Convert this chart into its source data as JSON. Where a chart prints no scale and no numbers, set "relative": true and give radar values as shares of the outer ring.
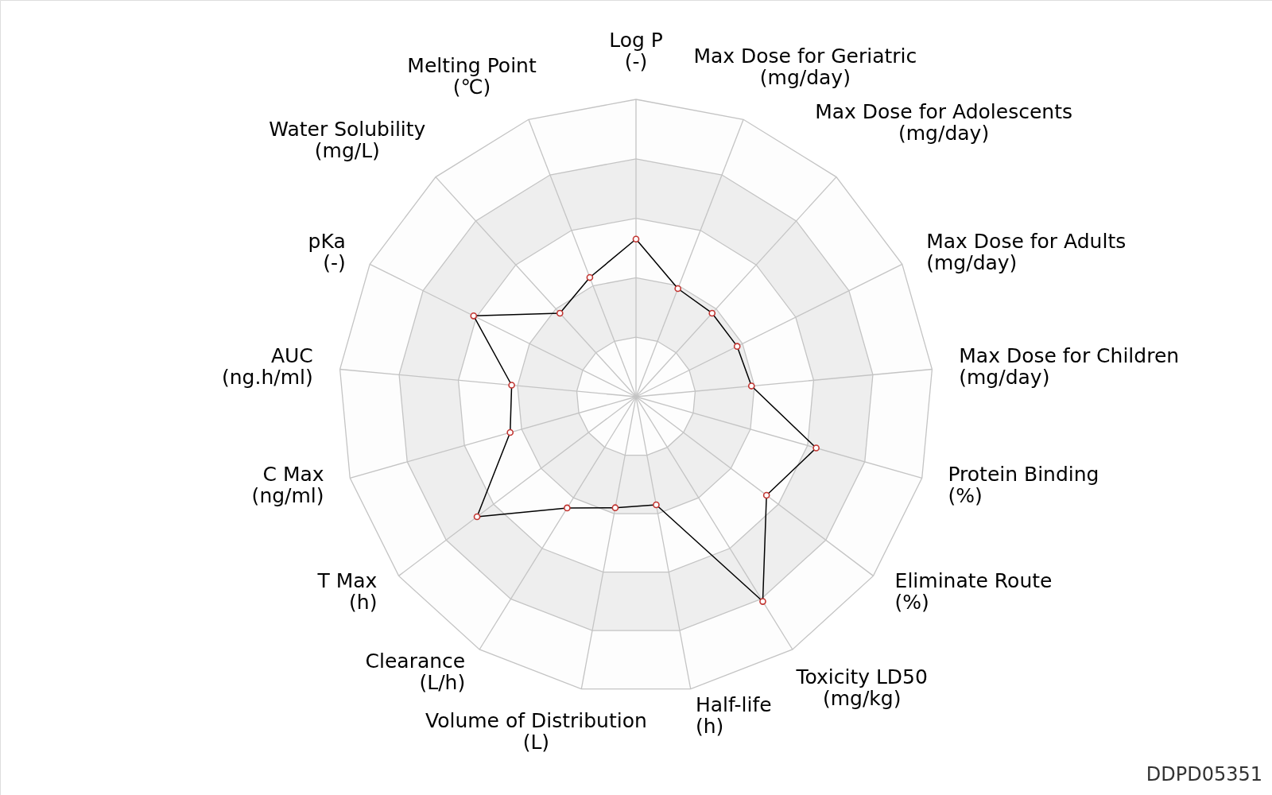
{
  "chart_data": {
    "type": "radar",
    "relative": true,
    "grid": true,
    "marker": "circle",
    "line_style": "solid",
    "categories": [
      "Log P\n(-)",
      "Max Dose for Geriatric\n(mg/day)",
      "Max Dose for Adolescents\n(mg/day)",
      "Max Dose for Adults\n(mg/day)",
      "Max Dose for Children\n(mg/day)",
      "Protein Binding\n(%)",
      "Eliminate Route\n(%)",
      "Toxicity LD50\n(mg/kg)",
      "Half-life\n(h)",
      "Volume of Distribution\n(L)",
      "Clearance\n(L/h)",
      "T Max\n(h)",
      "C Max\n(ng/ml)",
      "AUC\n(ng.h/ml)",
      "pKa\n(-)",
      "Water Solubility\n(mg/L)",
      "Melting Point\n(℃)"
    ],
    "series": [
      {
        "color": "#000000",
        "values": [
          0.53,
          0.39,
          0.38,
          0.38,
          0.39,
          0.63,
          0.55,
          0.81,
          0.37,
          0.38,
          0.44,
          0.67,
          0.44,
          0.42,
          0.61,
          0.38,
          0.43
        ]
      }
    ],
    "annotations": [
      "DDPD05351"
    ]
  }
}
